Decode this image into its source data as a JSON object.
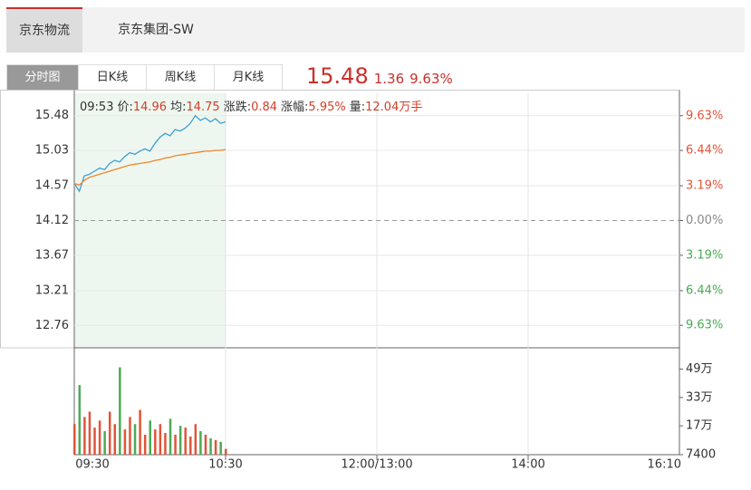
{
  "tabs": [
    "京东物流",
    "京东集团-SW"
  ],
  "buttons": [
    "分时图",
    "日K线",
    "周K线",
    "月K线"
  ],
  "quote": {
    "price": "15.48",
    "change": "1.36",
    "pct": "9.63%"
  },
  "info": {
    "time": "09:53",
    "items": [
      {
        "label": "价:",
        "value": "14.96"
      },
      {
        "label": "均:",
        "value": "14.75"
      },
      {
        "label": "涨跌:",
        "value": "0.84"
      },
      {
        "label": "涨幅:",
        "value": "5.95%"
      },
      {
        "label": "量:",
        "value": "12.04万手"
      }
    ]
  },
  "chart_data": {
    "type": "line",
    "x": [
      0,
      2,
      4,
      6,
      8,
      10,
      12,
      14,
      16,
      18,
      20,
      22,
      24,
      26,
      28,
      30,
      32,
      34,
      36,
      38,
      40,
      42,
      44,
      46,
      48,
      50,
      52,
      54,
      56,
      58,
      60
    ],
    "xlim": [
      0,
      340
    ],
    "xticks": [
      {
        "value": 0,
        "label": "09:30"
      },
      {
        "value": 60,
        "label": "10:30"
      },
      {
        "value": 150,
        "label": "12:00/13:00"
      },
      {
        "value": 210,
        "label": "14:00"
      },
      {
        "value": 340,
        "label": "16:10"
      }
    ],
    "series": [
      {
        "name": "价",
        "color": "#3a9fd6",
        "values": [
          14.6,
          14.5,
          14.7,
          14.72,
          14.76,
          14.8,
          14.78,
          14.86,
          14.9,
          14.88,
          14.95,
          15.0,
          14.98,
          15.02,
          15.05,
          15.02,
          15.12,
          15.2,
          15.25,
          15.22,
          15.3,
          15.28,
          15.32,
          15.38,
          15.48,
          15.42,
          15.45,
          15.4,
          15.44,
          15.38,
          15.4
        ]
      },
      {
        "name": "均",
        "color": "#f0862a",
        "values": [
          14.6,
          14.58,
          14.64,
          14.68,
          14.7,
          14.72,
          14.74,
          14.76,
          14.78,
          14.8,
          14.82,
          14.84,
          14.85,
          14.86,
          14.87,
          14.88,
          14.9,
          14.91,
          14.93,
          14.94,
          14.96,
          14.97,
          14.98,
          14.99,
          15.0,
          15.01,
          15.02,
          15.02,
          15.03,
          15.03,
          15.04
        ]
      }
    ],
    "ylim": [
      12.47,
      15.77
    ],
    "yticks": [
      15.48,
      15.03,
      14.57,
      14.12,
      13.67,
      13.21,
      12.76
    ],
    "y2lim": [
      -11.69,
      11.69
    ],
    "y2ticks": [
      {
        "value": 9.63,
        "label": "9.63%"
      },
      {
        "value": 6.44,
        "label": "6.44%"
      },
      {
        "value": 3.19,
        "label": "3.19%"
      },
      {
        "value": 0,
        "label": "0.00%"
      },
      {
        "value": -3.19,
        "label": "3.19%"
      },
      {
        "value": -6.44,
        "label": "6.44%"
      },
      {
        "value": -9.63,
        "label": "9.63%"
      }
    ],
    "up_color": "#e0553a",
    "down_color": "#4caa55",
    "flat_color": "#888888",
    "volume": {
      "values": [
        180000,
        400000,
        220000,
        250000,
        160000,
        200000,
        140000,
        250000,
        180000,
        500000,
        150000,
        220000,
        180000,
        260000,
        120000,
        200000,
        150000,
        180000,
        130000,
        210000,
        120000,
        170000,
        160000,
        110000,
        180000,
        140000,
        120000,
        100000,
        90000,
        80000,
        40000
      ],
      "ylim": [
        7400,
        610000
      ],
      "yticks": [
        {
          "value": 490000,
          "label": "49万"
        },
        {
          "value": 330000,
          "label": "33万"
        },
        {
          "value": 170000,
          "label": "17万"
        },
        7400
      ]
    }
  }
}
